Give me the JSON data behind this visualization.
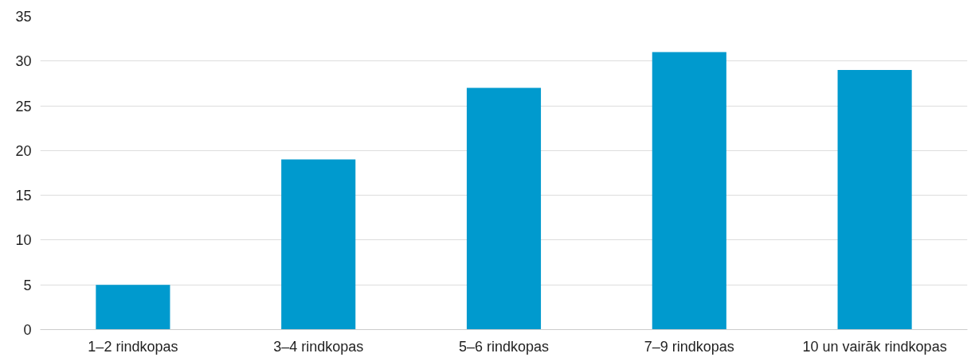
{
  "chart_data": {
    "type": "bar",
    "categories": [
      "1–2 rindkopas",
      "3–4 rindkopas",
      "5–6 rindkopas",
      "7–9 rindkopas",
      "10 un vairāk rindkopas"
    ],
    "values": [
      5,
      19,
      27,
      31,
      29
    ],
    "color": "#009ace",
    "ylim": [
      0,
      35
    ],
    "yticks": [
      0,
      5,
      10,
      15,
      20,
      25,
      30,
      35
    ],
    "grid": "y"
  }
}
